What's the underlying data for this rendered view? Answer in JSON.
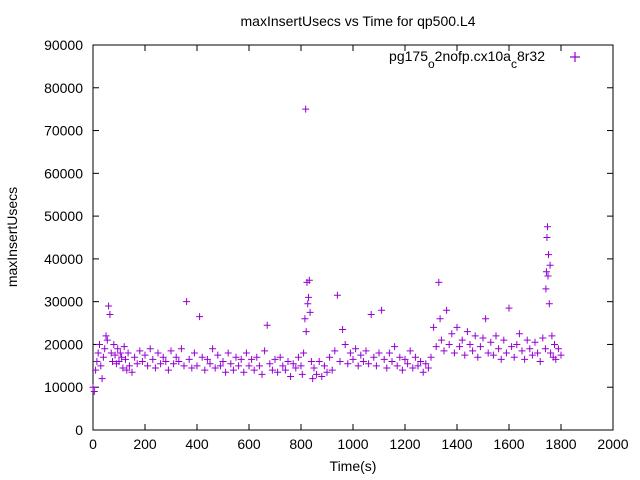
{
  "chart_data": {
    "type": "scatter",
    "title": "maxInsertUsecs vs Time for qp500.L4",
    "xlabel": "Time(s)",
    "ylabel": "maxInsertUsecs",
    "xlim": [
      0,
      2000
    ],
    "ylim": [
      0,
      90000
    ],
    "x_ticks": [
      "0",
      "200",
      "400",
      "600",
      "800",
      "1000",
      "1200",
      "1400",
      "1600",
      "1800",
      "2000"
    ],
    "y_ticks": [
      "0",
      "10000",
      "20000",
      "30000",
      "40000",
      "50000",
      "60000",
      "70000",
      "80000",
      "90000"
    ],
    "grid": false,
    "legend_position": "top-right",
    "marker": "+",
    "series": [
      {
        "name": "pg175_o2nofp.cx10a_c8r32",
        "color": "#9400d3",
        "points": [
          [
            0,
            10000
          ],
          [
            5,
            9000
          ],
          [
            10,
            14000
          ],
          [
            15,
            16000
          ],
          [
            20,
            18000
          ],
          [
            25,
            20000
          ],
          [
            30,
            15000
          ],
          [
            35,
            12000
          ],
          [
            40,
            17000
          ],
          [
            45,
            19000
          ],
          [
            50,
            22000
          ],
          [
            55,
            21000
          ],
          [
            60,
            29000
          ],
          [
            65,
            27000
          ],
          [
            70,
            18000
          ],
          [
            75,
            16000
          ],
          [
            80,
            20000
          ],
          [
            85,
            17500
          ],
          [
            90,
            15500
          ],
          [
            95,
            19000
          ],
          [
            100,
            16000
          ],
          [
            105,
            18000
          ],
          [
            110,
            17000
          ],
          [
            115,
            14500
          ],
          [
            120,
            19500
          ],
          [
            125,
            16500
          ],
          [
            130,
            14000
          ],
          [
            135,
            18000
          ],
          [
            140,
            15000
          ],
          [
            150,
            13500
          ],
          [
            160,
            17000
          ],
          [
            170,
            15500
          ],
          [
            180,
            18500
          ],
          [
            190,
            16000
          ],
          [
            200,
            17500
          ],
          [
            210,
            15000
          ],
          [
            220,
            19000
          ],
          [
            230,
            16500
          ],
          [
            240,
            14500
          ],
          [
            250,
            18000
          ],
          [
            260,
            15500
          ],
          [
            270,
            17000
          ],
          [
            280,
            16000
          ],
          [
            290,
            14000
          ],
          [
            300,
            18500
          ],
          [
            310,
            15500
          ],
          [
            320,
            17000
          ],
          [
            330,
            16000
          ],
          [
            340,
            19000
          ],
          [
            350,
            15000
          ],
          [
            360,
            30000
          ],
          [
            370,
            16500
          ],
          [
            380,
            14500
          ],
          [
            390,
            18000
          ],
          [
            400,
            15000
          ],
          [
            410,
            26500
          ],
          [
            420,
            17000
          ],
          [
            430,
            14000
          ],
          [
            440,
            16500
          ],
          [
            450,
            15500
          ],
          [
            460,
            19000
          ],
          [
            470,
            14500
          ],
          [
            480,
            17500
          ],
          [
            490,
            15000
          ],
          [
            500,
            16000
          ],
          [
            510,
            13500
          ],
          [
            520,
            18000
          ],
          [
            530,
            15500
          ],
          [
            540,
            14000
          ],
          [
            550,
            17000
          ],
          [
            560,
            15000
          ],
          [
            570,
            16500
          ],
          [
            580,
            13500
          ],
          [
            590,
            18000
          ],
          [
            600,
            15000
          ],
          [
            610,
            16500
          ],
          [
            620,
            14000
          ],
          [
            630,
            17000
          ],
          [
            640,
            15000
          ],
          [
            650,
            13000
          ],
          [
            660,
            18500
          ],
          [
            670,
            24500
          ],
          [
            680,
            15500
          ],
          [
            690,
            14000
          ],
          [
            700,
            16500
          ],
          [
            710,
            13500
          ],
          [
            720,
            17000
          ],
          [
            730,
            15000
          ],
          [
            740,
            14000
          ],
          [
            750,
            16000
          ],
          [
            760,
            12500
          ],
          [
            770,
            15500
          ],
          [
            780,
            14500
          ],
          [
            790,
            17000
          ],
          [
            800,
            15000
          ],
          [
            805,
            13000
          ],
          [
            810,
            18000
          ],
          [
            815,
            26000
          ],
          [
            818,
            75000
          ],
          [
            820,
            23000
          ],
          [
            823,
            34500
          ],
          [
            826,
            29500
          ],
          [
            829,
            31000
          ],
          [
            832,
            35000
          ],
          [
            835,
            27500
          ],
          [
            840,
            16000
          ],
          [
            845,
            12000
          ],
          [
            850,
            14500
          ],
          [
            860,
            13000
          ],
          [
            870,
            16000
          ],
          [
            880,
            12500
          ],
          [
            890,
            15000
          ],
          [
            900,
            13500
          ],
          [
            910,
            17000
          ],
          [
            920,
            14000
          ],
          [
            930,
            18500
          ],
          [
            940,
            31500
          ],
          [
            950,
            16000
          ],
          [
            960,
            23500
          ],
          [
            970,
            20000
          ],
          [
            980,
            15500
          ],
          [
            990,
            18000
          ],
          [
            1000,
            16500
          ],
          [
            1010,
            19000
          ],
          [
            1020,
            15000
          ],
          [
            1030,
            17500
          ],
          [
            1040,
            16000
          ],
          [
            1050,
            18500
          ],
          [
            1060,
            15500
          ],
          [
            1070,
            27000
          ],
          [
            1080,
            17000
          ],
          [
            1090,
            15000
          ],
          [
            1100,
            18000
          ],
          [
            1110,
            28000
          ],
          [
            1120,
            16500
          ],
          [
            1130,
            14500
          ],
          [
            1140,
            18000
          ],
          [
            1150,
            16000
          ],
          [
            1160,
            19500
          ],
          [
            1170,
            15000
          ],
          [
            1180,
            17000
          ],
          [
            1190,
            14000
          ],
          [
            1200,
            16500
          ],
          [
            1210,
            15500
          ],
          [
            1220,
            18500
          ],
          [
            1230,
            14500
          ],
          [
            1240,
            17000
          ],
          [
            1250,
            15000
          ],
          [
            1260,
            16000
          ],
          [
            1270,
            13500
          ],
          [
            1280,
            15500
          ],
          [
            1290,
            14500
          ],
          [
            1300,
            17000
          ],
          [
            1310,
            24000
          ],
          [
            1320,
            19500
          ],
          [
            1330,
            34500
          ],
          [
            1335,
            26000
          ],
          [
            1340,
            21000
          ],
          [
            1350,
            18500
          ],
          [
            1360,
            28000
          ],
          [
            1370,
            20000
          ],
          [
            1380,
            22500
          ],
          [
            1390,
            18000
          ],
          [
            1400,
            24000
          ],
          [
            1410,
            19500
          ],
          [
            1420,
            21000
          ],
          [
            1430,
            17500
          ],
          [
            1440,
            23000
          ],
          [
            1450,
            20000
          ],
          [
            1460,
            18500
          ],
          [
            1470,
            22000
          ],
          [
            1480,
            17000
          ],
          [
            1490,
            19500
          ],
          [
            1500,
            21500
          ],
          [
            1510,
            26000
          ],
          [
            1520,
            18000
          ],
          [
            1530,
            20500
          ],
          [
            1540,
            17500
          ],
          [
            1550,
            22000
          ],
          [
            1560,
            19000
          ],
          [
            1570,
            16500
          ],
          [
            1580,
            21000
          ],
          [
            1590,
            18000
          ],
          [
            1600,
            28500
          ],
          [
            1610,
            19500
          ],
          [
            1620,
            17000
          ],
          [
            1630,
            20000
          ],
          [
            1640,
            22500
          ],
          [
            1650,
            18500
          ],
          [
            1660,
            16500
          ],
          [
            1670,
            21000
          ],
          [
            1680,
            19000
          ],
          [
            1690,
            17500
          ],
          [
            1700,
            20500
          ],
          [
            1710,
            18000
          ],
          [
            1720,
            16000
          ],
          [
            1730,
            21500
          ],
          [
            1740,
            19000
          ],
          [
            1742,
            33000
          ],
          [
            1744,
            37000
          ],
          [
            1746,
            45000
          ],
          [
            1748,
            47500
          ],
          [
            1750,
            36000
          ],
          [
            1752,
            41000
          ],
          [
            1755,
            29500
          ],
          [
            1758,
            38500
          ],
          [
            1760,
            18000
          ],
          [
            1765,
            22000
          ],
          [
            1770,
            17000
          ],
          [
            1775,
            20000
          ],
          [
            1780,
            16500
          ],
          [
            1790,
            19000
          ],
          [
            1800,
            17500
          ]
        ]
      }
    ]
  }
}
